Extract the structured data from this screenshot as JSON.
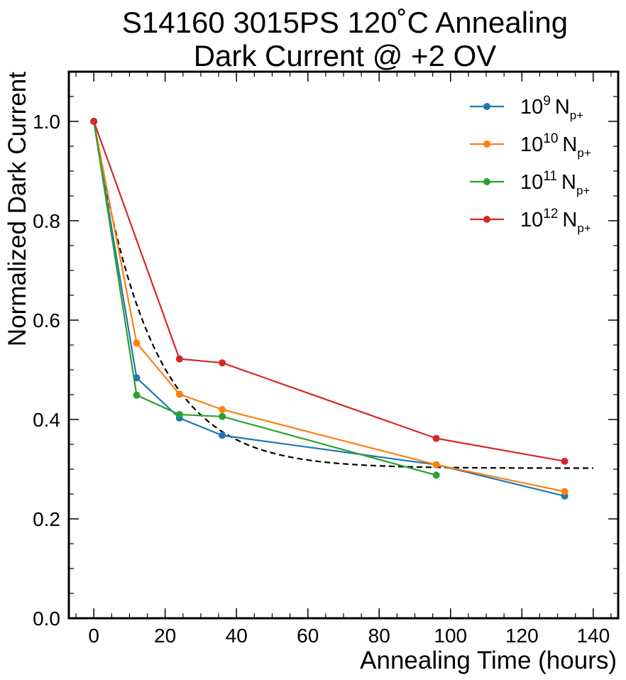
{
  "chart_data": {
    "type": "line",
    "title_line1": "S14160 3015PS 120˚C Annealing",
    "title_line2": "Dark Current @ +2 OV",
    "xlabel": "Annealing Time (hours)",
    "ylabel": "Normalized Dark Current",
    "xlim": [
      -7,
      147
    ],
    "ylim": [
      0.0,
      1.1
    ],
    "xticks": [
      0,
      20,
      40,
      60,
      80,
      100,
      120,
      140
    ],
    "xtick_labels": [
      "0",
      "20",
      "40",
      "60",
      "80",
      "100",
      "120",
      "140"
    ],
    "yticks": [
      0.0,
      0.2,
      0.4,
      0.6,
      0.8,
      1.0
    ],
    "ytick_labels": [
      "0.0",
      "0.2",
      "0.4",
      "0.6",
      "0.8",
      "1.0"
    ],
    "legend_position": "top-right",
    "series": [
      {
        "name": "10^9 N_p+",
        "base": "10",
        "exp": "9",
        "unit": "N",
        "sub": "p+",
        "color": "#1f77b4",
        "x": [
          0,
          12,
          24,
          36,
          96,
          132
        ],
        "y": [
          1.0,
          0.484,
          0.403,
          0.368,
          0.309,
          0.246
        ]
      },
      {
        "name": "10^10 N_p+",
        "base": "10",
        "exp": "10",
        "unit": "N",
        "sub": "p+",
        "color": "#ff7f0e",
        "x": [
          0,
          12,
          24,
          36,
          96,
          132
        ],
        "y": [
          1.0,
          0.554,
          0.451,
          0.42,
          0.309,
          0.255
        ]
      },
      {
        "name": "10^11 N_p+",
        "base": "10",
        "exp": "11",
        "unit": "N",
        "sub": "p+",
        "color": "#2ca02c",
        "x": [
          0,
          12,
          24,
          36,
          96
        ],
        "y": [
          1.0,
          0.449,
          0.41,
          0.406,
          0.288
        ]
      },
      {
        "name": "10^12 N_p+",
        "base": "10",
        "exp": "12",
        "unit": "N",
        "sub": "p+",
        "color": "#d62728",
        "x": [
          0,
          12,
          24,
          36,
          96,
          132
        ],
        "y": [
          1.0,
          null,
          0.522,
          0.514,
          0.362,
          0.316
        ]
      }
    ],
    "fit": {
      "style": "dashed",
      "color": "#000000",
      "model": "exponential decay",
      "x_range": [
        0,
        140
      ],
      "amplitude": 0.698,
      "tau_hours": 16.0,
      "offset": 0.302
    }
  }
}
